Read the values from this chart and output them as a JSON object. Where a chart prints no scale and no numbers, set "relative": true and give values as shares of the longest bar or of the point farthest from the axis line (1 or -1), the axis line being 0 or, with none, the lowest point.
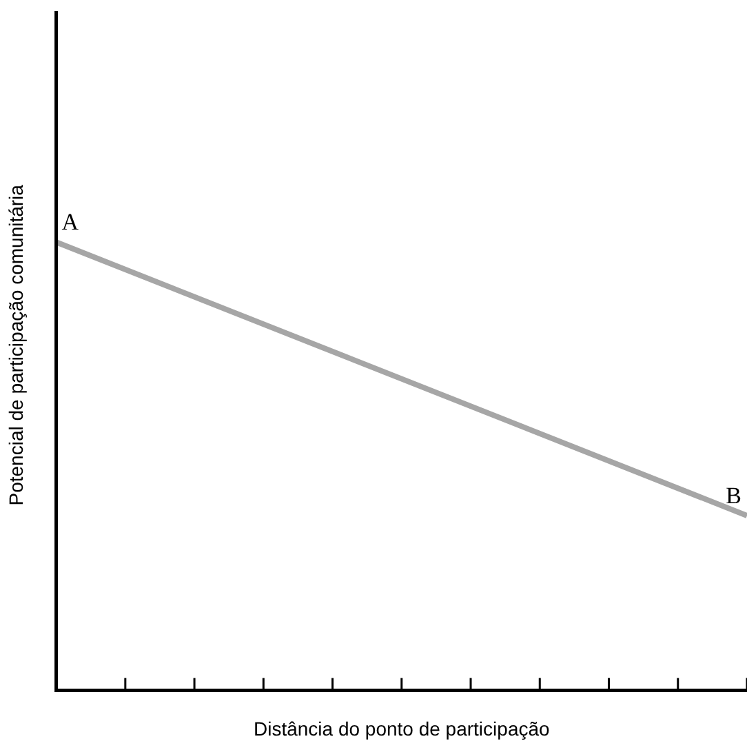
{
  "chart_data": {
    "type": "line",
    "relative": true,
    "xlabel": "Distância do ponto de participação",
    "ylabel": "Potencial de participação comunitária",
    "categories": [
      null,
      null,
      null,
      null,
      null,
      null,
      null,
      null,
      null,
      null,
      null
    ],
    "series": [
      {
        "color": "#a6a6a6",
        "values": [
          1,
          null,
          null,
          null,
          null,
          null,
          null,
          null,
          null,
          null,
          0.39
        ]
      }
    ],
    "annotations": [
      {
        "text": "A",
        "y": 1
      },
      {
        "text": "B",
        "y": 0.39
      }
    ],
    "grid": false,
    "legend": false,
    "marker": "none",
    "line_style": "solid"
  }
}
